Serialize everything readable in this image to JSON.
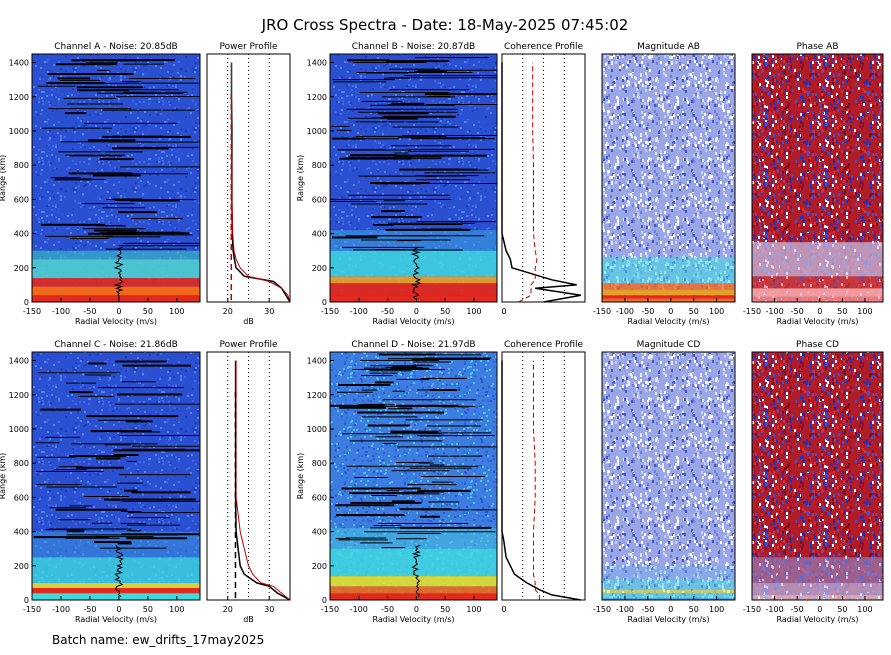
{
  "title": "JRO Cross Spectra - Date: 18-May-2025 07:45:02",
  "footer": "Batch name: ew_drifts_17may2025",
  "rows": [
    {
      "channel_title": "Channel A - Noise: 20.85dB",
      "power_title": "Power Profile",
      "channel2_title": "Channel B - Noise: 20.87dB",
      "coherence_title": "Coherence Profile",
      "magnitude_title": "Magnitude AB",
      "phase_title": "Phase AB"
    },
    {
      "channel_title": "Channel C - Noise: 21.86dB",
      "power_title": "Power Profile",
      "channel2_title": "Channel D - Noise: 21.97dB",
      "coherence_title": "Coherence Profile",
      "magnitude_title": "Magnitude CD",
      "phase_title": "Phase CD"
    }
  ],
  "axes": {
    "range_label": "Range (km)",
    "velocity_label": "Radial Velocity (m/s)",
    "db_label": "dB",
    "range_ticks": [
      0,
      200,
      400,
      600,
      800,
      1000,
      1200,
      1400
    ],
    "velocity_ticks": [
      "-150",
      "-100",
      "-50",
      "0",
      "50",
      "100"
    ],
    "velocity_ticks_compact": [
      "-150",
      "-100",
      "-50",
      "0",
      "50",
      "100"
    ],
    "db_ticks": [
      "20",
      "30"
    ],
    "coh_ticks": [
      "0"
    ]
  },
  "colors": {
    "spectra_bg": "#2a4fd0",
    "spectra_low": "#3fd9e0",
    "spectra_mid": "#e6e02a",
    "spectra_high": "#e4281e",
    "power_curve": "#000000",
    "power_curve2": "#c00000",
    "noise_line": "#c00000",
    "magnitude_bg": "#9aa6e6",
    "phase_red": "#c41818",
    "phase_blue": "#2233c0"
  },
  "chart_data": {
    "type": "heatmap",
    "xlim": [
      -150,
      140
    ],
    "ylim": [
      0,
      1450
    ],
    "power_xlim": [
      15,
      35
    ],
    "rows": [
      {
        "power_profile": {
          "range": [
            0,
            40,
            80,
            120,
            150,
            200,
            250,
            300,
            400,
            600,
            800,
            1000,
            1200,
            1400
          ],
          "power": [
            35,
            34,
            33,
            31,
            24,
            22,
            21.6,
            21.3,
            21.1,
            21.0,
            21.0,
            21.0,
            20.9,
            20.9
          ],
          "power2": [
            35,
            34.5,
            33,
            30,
            25,
            23,
            22,
            21.5,
            21.2,
            21.0,
            21.0,
            20.9,
            20.9,
            20.9
          ],
          "noise": 20.85
        },
        "coherence_profile": {
          "range": [
            0,
            40,
            80,
            100,
            130,
            200,
            250,
            300,
            400,
            600,
            800,
            1000,
            1200,
            1400
          ],
          "coherence": [
            0.5,
            0.95,
            0.4,
            0.9,
            0.6,
            0.12,
            0.1,
            0.05,
            0.0,
            0.0,
            0.0,
            0.0,
            0.0,
            0.0
          ],
          "threshold": [
            0.2,
            0.35,
            0.35,
            0.35,
            0.4,
            0.4,
            0.42,
            0.4,
            0.38,
            0.38,
            0.38,
            0.37,
            0.37,
            0.37
          ]
        }
      },
      {
        "power_profile": {
          "range": [
            0,
            40,
            80,
            100,
            150,
            200,
            300,
            400,
            600,
            800,
            1000,
            1200,
            1400
          ],
          "power": [
            35,
            32,
            30,
            27,
            24,
            23,
            22.5,
            22,
            21.9,
            21.9,
            21.9,
            21.9,
            21.9
          ],
          "power2": [
            35,
            33,
            31,
            28,
            26,
            25,
            24,
            23,
            22,
            22,
            22,
            22,
            22
          ],
          "noise": 21.86
        },
        "coherence_profile": {
          "range": [
            0,
            30,
            60,
            100,
            150,
            250,
            350,
            400,
            600,
            800,
            1000,
            1200,
            1400
          ],
          "coherence": [
            0.95,
            0.6,
            0.45,
            0.3,
            0.15,
            0.05,
            0.02,
            0.0,
            0.0,
            0.0,
            0.0,
            0.0,
            0.0
          ],
          "threshold": [
            0.45,
            0.45,
            0.4,
            0.4,
            0.38,
            0.38,
            0.38,
            0.38,
            0.4,
            0.4,
            0.38,
            0.38,
            0.38
          ]
        }
      }
    ]
  }
}
